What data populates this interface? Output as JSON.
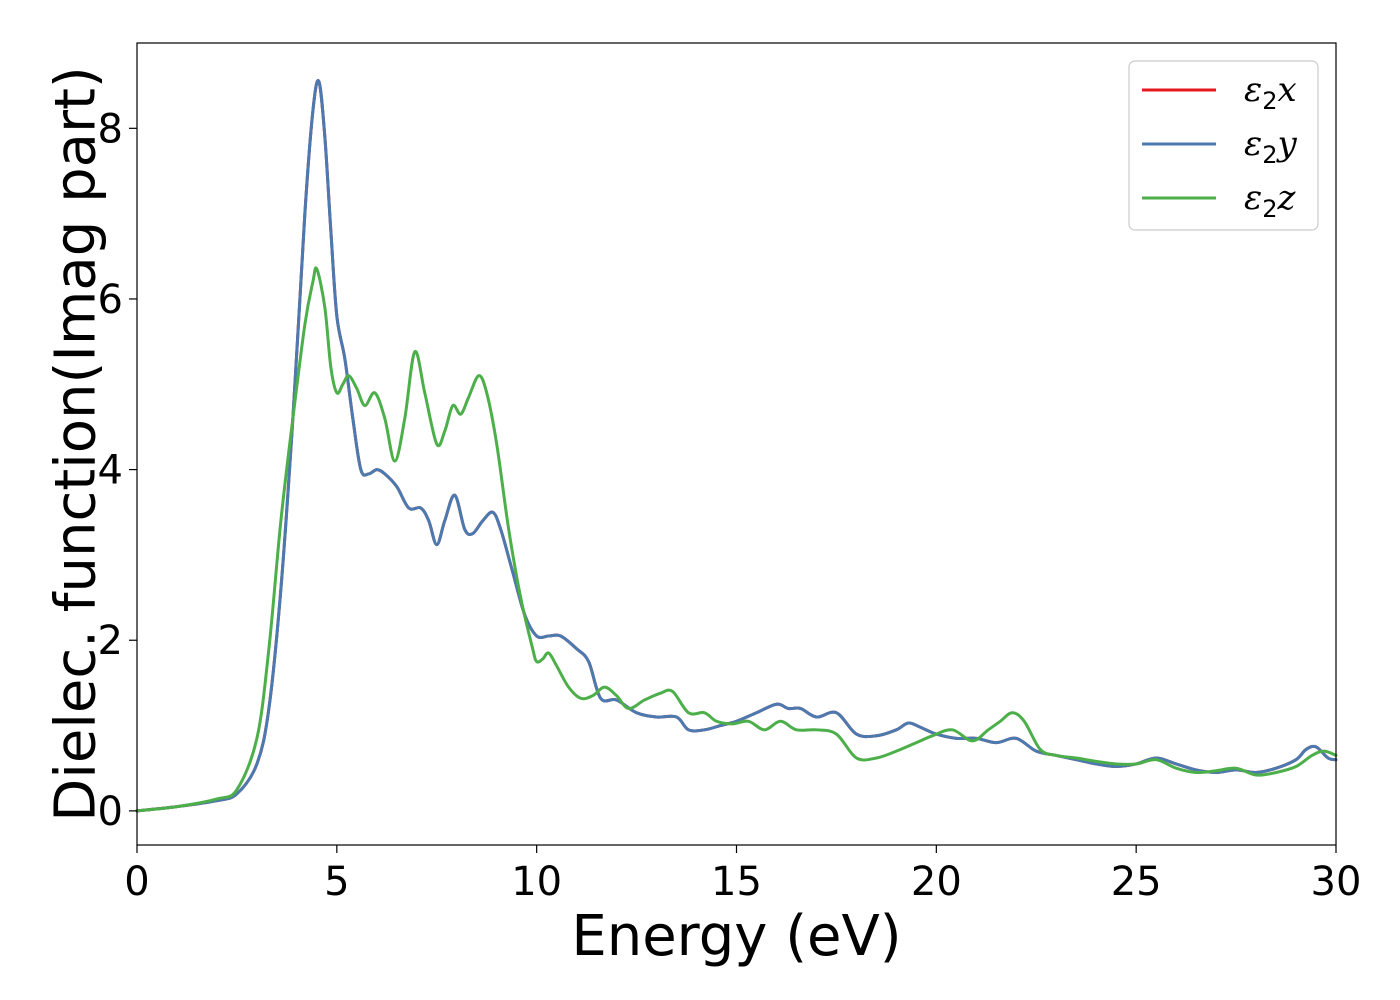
{
  "chart_data": {
    "type": "line",
    "xlabel": "Energy (eV)",
    "ylabel": "Dielec. function(Imag part)",
    "xlim": [
      0,
      30
    ],
    "ylim": [
      -0.4,
      9.0
    ],
    "xticks": [
      0,
      5,
      10,
      15,
      20,
      25,
      30
    ],
    "yticks": [
      0,
      2,
      4,
      6,
      8
    ],
    "xtick_labels": [
      "0",
      "5",
      "10",
      "15",
      "20",
      "25",
      "30"
    ],
    "ytick_labels": [
      "0",
      "2",
      "4",
      "6",
      "8"
    ],
    "grid": false,
    "legend_position": "top-right",
    "series": [
      {
        "name": "ε2x",
        "legend_main": "ε",
        "legend_sub": "2",
        "legend_var": "x",
        "color": "#e41a1c",
        "x": [
          0,
          1,
          2,
          2.5,
          3,
          3.3,
          3.6,
          3.9,
          4.2,
          4.4,
          4.55,
          4.7,
          4.85,
          5.0,
          5.2,
          5.4,
          5.6,
          5.8,
          6.0,
          6.2,
          6.5,
          6.8,
          7.1,
          7.3,
          7.5,
          7.7,
          7.95,
          8.2,
          8.4,
          8.65,
          8.9,
          9.1,
          9.4,
          9.7,
          10.0,
          10.3,
          10.6,
          11.0,
          11.3,
          11.6,
          12.0,
          12.5,
          13.0,
          13.5,
          13.8,
          14.2,
          14.6,
          15.0,
          15.5,
          16.0,
          16.3,
          16.6,
          17.0,
          17.5,
          18.0,
          18.5,
          19.0,
          19.3,
          19.6,
          20.0,
          20.5,
          21.0,
          21.5,
          22.0,
          22.5,
          23.0,
          23.5,
          24.0,
          24.5,
          25.0,
          25.5,
          26.0,
          26.5,
          27.0,
          27.5,
          28.0,
          28.5,
          29.0,
          29.25,
          29.5,
          29.8,
          30.0
        ],
        "y": [
          0.0,
          0.05,
          0.12,
          0.2,
          0.55,
          1.2,
          2.6,
          4.6,
          7.0,
          8.2,
          8.55,
          7.9,
          6.8,
          5.8,
          5.3,
          4.6,
          4.0,
          3.95,
          4.0,
          3.95,
          3.8,
          3.55,
          3.55,
          3.4,
          3.12,
          3.4,
          3.7,
          3.3,
          3.25,
          3.4,
          3.5,
          3.3,
          2.8,
          2.3,
          2.05,
          2.05,
          2.05,
          1.9,
          1.75,
          1.32,
          1.3,
          1.15,
          1.1,
          1.1,
          0.95,
          0.95,
          1.0,
          1.05,
          1.15,
          1.25,
          1.2,
          1.2,
          1.1,
          1.15,
          0.9,
          0.88,
          0.95,
          1.03,
          0.98,
          0.9,
          0.85,
          0.85,
          0.8,
          0.85,
          0.7,
          0.65,
          0.6,
          0.55,
          0.52,
          0.55,
          0.62,
          0.55,
          0.48,
          0.45,
          0.48,
          0.45,
          0.5,
          0.6,
          0.72,
          0.75,
          0.62,
          0.6
        ]
      },
      {
        "name": "ε2y",
        "legend_main": "ε",
        "legend_sub": "2",
        "legend_var": "y",
        "color": "#4a7ab0",
        "x": [
          0,
          1,
          2,
          2.5,
          3,
          3.3,
          3.6,
          3.9,
          4.2,
          4.4,
          4.55,
          4.7,
          4.85,
          5.0,
          5.2,
          5.4,
          5.6,
          5.8,
          6.0,
          6.2,
          6.5,
          6.8,
          7.1,
          7.3,
          7.5,
          7.7,
          7.95,
          8.2,
          8.4,
          8.65,
          8.9,
          9.1,
          9.4,
          9.7,
          10.0,
          10.3,
          10.6,
          11.0,
          11.3,
          11.6,
          12.0,
          12.5,
          13.0,
          13.5,
          13.8,
          14.2,
          14.6,
          15.0,
          15.5,
          16.0,
          16.3,
          16.6,
          17.0,
          17.5,
          18.0,
          18.5,
          19.0,
          19.3,
          19.6,
          20.0,
          20.5,
          21.0,
          21.5,
          22.0,
          22.5,
          23.0,
          23.5,
          24.0,
          24.5,
          25.0,
          25.5,
          26.0,
          26.5,
          27.0,
          27.5,
          28.0,
          28.5,
          29.0,
          29.25,
          29.5,
          29.8,
          30.0
        ],
        "y": [
          0.0,
          0.05,
          0.12,
          0.2,
          0.55,
          1.2,
          2.6,
          4.6,
          7.0,
          8.2,
          8.55,
          7.9,
          6.8,
          5.8,
          5.3,
          4.6,
          4.0,
          3.95,
          4.0,
          3.95,
          3.8,
          3.55,
          3.55,
          3.4,
          3.12,
          3.4,
          3.7,
          3.3,
          3.25,
          3.4,
          3.5,
          3.3,
          2.8,
          2.3,
          2.05,
          2.05,
          2.05,
          1.9,
          1.75,
          1.32,
          1.3,
          1.15,
          1.1,
          1.1,
          0.95,
          0.95,
          1.0,
          1.05,
          1.15,
          1.25,
          1.2,
          1.2,
          1.1,
          1.15,
          0.9,
          0.88,
          0.95,
          1.03,
          0.98,
          0.9,
          0.85,
          0.85,
          0.8,
          0.85,
          0.7,
          0.65,
          0.6,
          0.55,
          0.52,
          0.55,
          0.62,
          0.55,
          0.48,
          0.45,
          0.48,
          0.45,
          0.5,
          0.6,
          0.72,
          0.75,
          0.62,
          0.6
        ]
      },
      {
        "name": "ε2z",
        "legend_main": "ε",
        "legend_sub": "2",
        "legend_var": "z",
        "color": "#4daf4a",
        "x": [
          0,
          1,
          2,
          2.5,
          3,
          3.3,
          3.6,
          3.9,
          4.2,
          4.4,
          4.5,
          4.7,
          4.85,
          5.0,
          5.15,
          5.3,
          5.5,
          5.7,
          5.95,
          6.2,
          6.45,
          6.7,
          6.95,
          7.2,
          7.5,
          7.7,
          7.9,
          8.1,
          8.3,
          8.55,
          8.75,
          9.0,
          9.3,
          9.6,
          9.9,
          10.0,
          10.15,
          10.3,
          10.5,
          10.8,
          11.1,
          11.4,
          11.7,
          12.0,
          12.3,
          12.7,
          13.1,
          13.4,
          13.8,
          14.2,
          14.5,
          14.9,
          15.3,
          15.7,
          16.1,
          16.5,
          17.0,
          17.5,
          18.0,
          18.5,
          19.0,
          19.5,
          19.9,
          20.4,
          20.9,
          21.3,
          21.6,
          21.9,
          22.2,
          22.6,
          23.0,
          23.5,
          24.0,
          24.5,
          25.0,
          25.5,
          26.0,
          26.5,
          27.0,
          27.5,
          28.0,
          28.5,
          29.0,
          29.4,
          29.7,
          30.0
        ],
        "y": [
          0.0,
          0.05,
          0.14,
          0.25,
          0.85,
          1.9,
          3.4,
          4.6,
          5.7,
          6.2,
          6.35,
          5.9,
          5.2,
          4.9,
          5.0,
          5.1,
          4.95,
          4.75,
          4.9,
          4.6,
          4.1,
          4.6,
          5.38,
          4.9,
          4.3,
          4.45,
          4.75,
          4.65,
          4.85,
          5.1,
          4.9,
          4.3,
          3.3,
          2.5,
          1.9,
          1.75,
          1.78,
          1.85,
          1.7,
          1.45,
          1.32,
          1.35,
          1.45,
          1.35,
          1.2,
          1.3,
          1.38,
          1.4,
          1.15,
          1.15,
          1.05,
          1.02,
          1.05,
          0.95,
          1.05,
          0.95,
          0.95,
          0.9,
          0.62,
          0.62,
          0.7,
          0.8,
          0.88,
          0.95,
          0.82,
          0.95,
          1.05,
          1.15,
          1.05,
          0.72,
          0.65,
          0.62,
          0.58,
          0.55,
          0.55,
          0.6,
          0.5,
          0.45,
          0.47,
          0.5,
          0.42,
          0.45,
          0.52,
          0.65,
          0.7,
          0.65
        ]
      }
    ]
  }
}
